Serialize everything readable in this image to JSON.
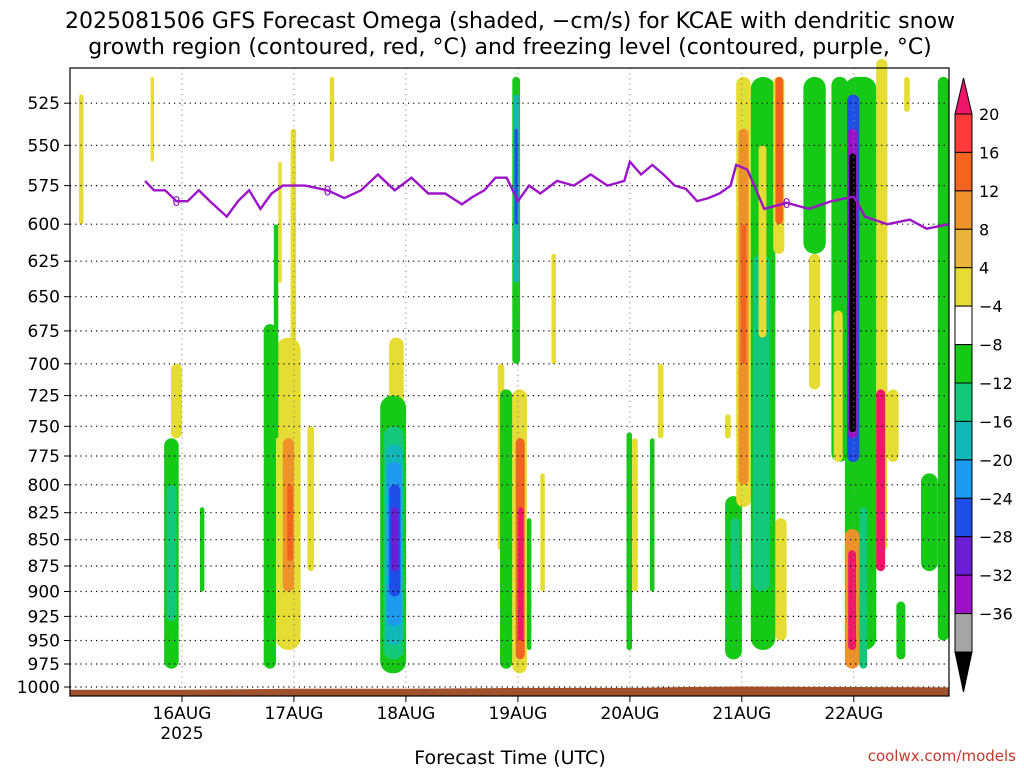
{
  "chart_data": {
    "type": "heatmap",
    "title_lines": [
      "2025081506 GFS Forecast Omega (shaded, −cm/s) for KCAE with dendritic snow",
      "growth region (contoured, red, °C) and freezing level (contoured, purple, °C)"
    ],
    "xlabel": "Forecast Time (UTC)",
    "credit": "coolwx.com/models",
    "y_ticks": [
      525,
      550,
      575,
      600,
      625,
      650,
      675,
      700,
      725,
      750,
      775,
      800,
      825,
      850,
      875,
      900,
      925,
      950,
      975,
      1000
    ],
    "x_ticks": [
      {
        "label": "16AUG",
        "sub": "2025",
        "day": 1.0
      },
      {
        "label": "17AUG",
        "sub": "",
        "day": 2.0
      },
      {
        "label": "18AUG",
        "sub": "",
        "day": 3.0
      },
      {
        "label": "19AUG",
        "sub": "",
        "day": 4.0
      },
      {
        "label": "20AUG",
        "sub": "",
        "day": 5.0
      },
      {
        "label": "21AUG",
        "sub": "",
        "day": 6.0
      },
      {
        "label": "22AUG",
        "sub": "",
        "day": 7.0
      }
    ],
    "colorbar": {
      "levels": [
        "20",
        "16",
        "12",
        "8",
        "4",
        "−4",
        "−8",
        "−12",
        "−16",
        "−20",
        "−24",
        "−28",
        "−32",
        "−36"
      ],
      "colors": [
        "#f0176a",
        "#ff3a3a",
        "#f3641e",
        "#f0922a",
        "#e9b53b",
        "#e5dd33",
        "#ffffff",
        "#17c917",
        "#13c77b",
        "#12b8b8",
        "#1d9bef",
        "#1f4fe6",
        "#6a1fd4",
        "#9c10c8",
        "#a5a5a5",
        "#000000"
      ]
    },
    "freezing_level_label": "0",
    "freezing_level": [
      [
        0.67,
        572
      ],
      [
        0.75,
        578
      ],
      [
        0.85,
        578
      ],
      [
        0.95,
        585
      ],
      [
        1.05,
        585
      ],
      [
        1.15,
        578
      ],
      [
        1.25,
        585
      ],
      [
        1.4,
        595
      ],
      [
        1.5,
        585
      ],
      [
        1.6,
        578
      ],
      [
        1.7,
        590
      ],
      [
        1.8,
        580
      ],
      [
        1.9,
        575
      ],
      [
        2.1,
        575
      ],
      [
        2.3,
        578
      ],
      [
        2.45,
        583
      ],
      [
        2.6,
        578
      ],
      [
        2.75,
        568
      ],
      [
        2.9,
        578
      ],
      [
        3.05,
        570
      ],
      [
        3.2,
        580
      ],
      [
        3.35,
        580
      ],
      [
        3.5,
        587
      ],
      [
        3.6,
        582
      ],
      [
        3.7,
        578
      ],
      [
        3.8,
        570
      ],
      [
        3.9,
        570
      ],
      [
        4.0,
        585
      ],
      [
        4.1,
        575
      ],
      [
        4.2,
        580
      ],
      [
        4.35,
        572
      ],
      [
        4.5,
        575
      ],
      [
        4.65,
        568
      ],
      [
        4.8,
        575
      ],
      [
        4.95,
        572
      ],
      [
        5.0,
        560
      ],
      [
        5.1,
        568
      ],
      [
        5.2,
        562
      ],
      [
        5.3,
        568
      ],
      [
        5.4,
        575
      ],
      [
        5.5,
        577
      ],
      [
        5.6,
        585
      ],
      [
        5.7,
        583
      ],
      [
        5.8,
        580
      ],
      [
        5.9,
        575
      ],
      [
        5.95,
        562
      ],
      [
        6.05,
        565
      ],
      [
        6.2,
        590
      ],
      [
        6.4,
        586
      ],
      [
        6.6,
        590
      ],
      [
        6.8,
        585
      ],
      [
        7.0,
        582
      ],
      [
        7.1,
        595
      ],
      [
        7.3,
        600
      ],
      [
        7.5,
        597
      ],
      [
        7.65,
        603
      ],
      [
        7.85,
        600
      ]
    ],
    "omega_cells": [
      {
        "t0": 0.84,
        "t1": 0.97,
        "p0": 760,
        "p1": 980,
        "lvl": "-8"
      },
      {
        "t0": 0.86,
        "t1": 0.95,
        "p0": 800,
        "p1": 930,
        "lvl": "-12"
      },
      {
        "t0": 0.9,
        "t1": 1.0,
        "p0": 700,
        "p1": 760,
        "lvl": "4"
      },
      {
        "t0": 1.16,
        "t1": 1.2,
        "p0": 820,
        "p1": 900,
        "lvl": "-8"
      },
      {
        "t0": 0.08,
        "t1": 0.12,
        "p0": 520,
        "p1": 600,
        "lvl": "4"
      },
      {
        "t0": 0.72,
        "t1": 0.75,
        "p0": 510,
        "p1": 560,
        "lvl": "4"
      },
      {
        "t0": 1.73,
        "t1": 1.84,
        "p0": 670,
        "p1": 980,
        "lvl": "-8"
      },
      {
        "t0": 1.84,
        "t1": 2.06,
        "p0": 680,
        "p1": 960,
        "lvl": "4"
      },
      {
        "t0": 1.9,
        "t1": 2.0,
        "p0": 760,
        "p1": 900,
        "lvl": "8"
      },
      {
        "t0": 1.94,
        "t1": 1.99,
        "p0": 800,
        "p1": 870,
        "lvl": "12"
      },
      {
        "t0": 2.12,
        "t1": 2.18,
        "p0": 750,
        "p1": 880,
        "lvl": "4"
      },
      {
        "t0": 1.97,
        "t1": 2.02,
        "p0": 540,
        "p1": 700,
        "lvl": "4"
      },
      {
        "t0": 2.32,
        "t1": 2.36,
        "p0": 510,
        "p1": 560,
        "lvl": "4"
      },
      {
        "t0": 1.82,
        "t1": 1.86,
        "p0": 600,
        "p1": 760,
        "lvl": "-8"
      },
      {
        "t0": 1.86,
        "t1": 1.89,
        "p0": 560,
        "p1": 640,
        "lvl": "4"
      },
      {
        "t0": 2.85,
        "t1": 2.98,
        "p0": 680,
        "p1": 760,
        "lvl": "4"
      },
      {
        "t0": 2.77,
        "t1": 3.0,
        "p0": 725,
        "p1": 985,
        "lvl": "-8"
      },
      {
        "t0": 2.8,
        "t1": 2.98,
        "p0": 750,
        "p1": 970,
        "lvl": "-12"
      },
      {
        "t0": 2.82,
        "t1": 2.97,
        "p0": 765,
        "p1": 955,
        "lvl": "-16"
      },
      {
        "t0": 2.83,
        "t1": 2.96,
        "p0": 780,
        "p1": 935,
        "lvl": "-20"
      },
      {
        "t0": 2.85,
        "t1": 2.95,
        "p0": 800,
        "p1": 905,
        "lvl": "-24"
      },
      {
        "t0": 2.87,
        "t1": 2.93,
        "p0": 820,
        "p1": 880,
        "lvl": "-28"
      },
      {
        "t0": 3.95,
        "t1": 4.02,
        "p0": 510,
        "p1": 700,
        "lvl": "-8"
      },
      {
        "t0": 3.96,
        "t1": 4.01,
        "p0": 520,
        "p1": 640,
        "lvl": "-16"
      },
      {
        "t0": 3.97,
        "t1": 4.0,
        "p0": 540,
        "p1": 600,
        "lvl": "-24"
      },
      {
        "t0": 3.82,
        "t1": 3.88,
        "p0": 700,
        "p1": 860,
        "lvl": "4"
      },
      {
        "t0": 3.84,
        "t1": 3.95,
        "p0": 720,
        "p1": 980,
        "lvl": "-8"
      },
      {
        "t0": 3.95,
        "t1": 4.08,
        "p0": 720,
        "p1": 985,
        "lvl": "4"
      },
      {
        "t0": 3.98,
        "t1": 4.06,
        "p0": 760,
        "p1": 970,
        "lvl": "12"
      },
      {
        "t0": 4.0,
        "t1": 4.05,
        "p0": 820,
        "p1": 950,
        "lvl": "20"
      },
      {
        "t0": 4.08,
        "t1": 4.12,
        "p0": 830,
        "p1": 960,
        "lvl": "-8"
      },
      {
        "t0": 4.2,
        "t1": 4.24,
        "p0": 790,
        "p1": 900,
        "lvl": "4"
      },
      {
        "t0": 4.3,
        "t1": 4.34,
        "p0": 620,
        "p1": 700,
        "lvl": "4"
      },
      {
        "t0": 4.97,
        "t1": 5.02,
        "p0": 755,
        "p1": 960,
        "lvl": "-8"
      },
      {
        "t0": 5.02,
        "t1": 5.07,
        "p0": 760,
        "p1": 900,
        "lvl": "4"
      },
      {
        "t0": 5.18,
        "t1": 5.22,
        "p0": 760,
        "p1": 900,
        "lvl": "-8"
      },
      {
        "t0": 5.25,
        "t1": 5.3,
        "p0": 700,
        "p1": 760,
        "lvl": "4"
      },
      {
        "t0": 5.85,
        "t1": 5.9,
        "p0": 740,
        "p1": 760,
        "lvl": "4"
      },
      {
        "t0": 5.85,
        "t1": 6.0,
        "p0": 810,
        "p1": 970,
        "lvl": "-8"
      },
      {
        "t0": 5.9,
        "t1": 5.98,
        "p0": 830,
        "p1": 900,
        "lvl": "-12"
      },
      {
        "t0": 5.95,
        "t1": 6.08,
        "p0": 510,
        "p1": 820,
        "lvl": "4"
      },
      {
        "t0": 5.97,
        "t1": 6.06,
        "p0": 540,
        "p1": 800,
        "lvl": "8"
      },
      {
        "t0": 5.99,
        "t1": 6.04,
        "p0": 600,
        "p1": 700,
        "lvl": "12"
      },
      {
        "t0": 6.08,
        "t1": 6.3,
        "p0": 510,
        "p1": 960,
        "lvl": "-8"
      },
      {
        "t0": 6.1,
        "t1": 6.25,
        "p0": 620,
        "p1": 900,
        "lvl": "-12"
      },
      {
        "t0": 6.15,
        "t1": 6.22,
        "p0": 550,
        "p1": 680,
        "lvl": "4"
      },
      {
        "t0": 6.28,
        "t1": 6.38,
        "p0": 510,
        "p1": 620,
        "lvl": "4"
      },
      {
        "t0": 6.3,
        "t1": 6.37,
        "p0": 510,
        "p1": 600,
        "lvl": "12"
      },
      {
        "t0": 6.3,
        "t1": 6.4,
        "p0": 830,
        "p1": 950,
        "lvl": "4"
      },
      {
        "t0": 6.55,
        "t1": 6.75,
        "p0": 510,
        "p1": 620,
        "lvl": "-8"
      },
      {
        "t0": 6.6,
        "t1": 6.7,
        "p0": 620,
        "p1": 720,
        "lvl": "4"
      },
      {
        "t0": 6.8,
        "t1": 6.95,
        "p0": 510,
        "p1": 780,
        "lvl": "-8"
      },
      {
        "t0": 6.82,
        "t1": 6.9,
        "p0": 660,
        "p1": 780,
        "lvl": "4"
      },
      {
        "t0": 6.92,
        "t1": 7.2,
        "p0": 510,
        "p1": 960,
        "lvl": "-8"
      },
      {
        "t0": 6.94,
        "t1": 7.05,
        "p0": 520,
        "p1": 780,
        "lvl": "-24"
      },
      {
        "t0": 6.95,
        "t1": 7.03,
        "p0": 540,
        "p1": 760,
        "lvl": "-32"
      },
      {
        "t0": 6.96,
        "t1": 7.02,
        "p0": 555,
        "p1": 755,
        "lvl": "-36"
      },
      {
        "t0": 6.92,
        "t1": 7.05,
        "p0": 840,
        "p1": 980,
        "lvl": "8"
      },
      {
        "t0": 6.95,
        "t1": 7.02,
        "p0": 860,
        "p1": 960,
        "lvl": "20"
      },
      {
        "t0": 7.05,
        "t1": 7.12,
        "p0": 820,
        "p1": 980,
        "lvl": "-12"
      },
      {
        "t0": 7.2,
        "t1": 7.3,
        "p0": 500,
        "p1": 860,
        "lvl": "4"
      },
      {
        "t0": 7.2,
        "t1": 7.28,
        "p0": 720,
        "p1": 880,
        "lvl": "20"
      },
      {
        "t0": 7.3,
        "t1": 7.4,
        "p0": 720,
        "p1": 780,
        "lvl": "4"
      },
      {
        "t0": 7.38,
        "t1": 7.46,
        "p0": 910,
        "p1": 970,
        "lvl": "-8"
      },
      {
        "t0": 7.45,
        "t1": 7.5,
        "p0": 510,
        "p1": 530,
        "lvl": "4"
      },
      {
        "t0": 7.6,
        "t1": 7.75,
        "p0": 790,
        "p1": 880,
        "lvl": "-8"
      },
      {
        "t0": 7.75,
        "t1": 7.85,
        "p0": 510,
        "p1": 950,
        "lvl": "-8"
      }
    ],
    "terrain_color": "#a0522d",
    "xlim_days": [
      0.0,
      7.85
    ],
    "ylim_hPa": [
      505,
      1010
    ],
    "y_scale": "log-pressure"
  }
}
